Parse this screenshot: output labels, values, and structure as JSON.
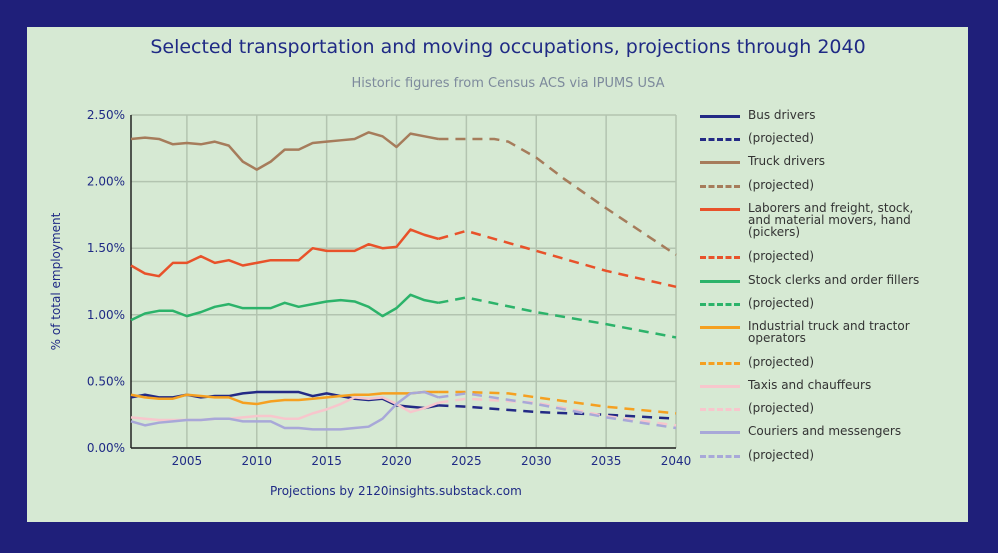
{
  "chart_data": {
    "type": "line",
    "title": "Selected transportation and moving occupations, projections through 2040",
    "subtitle": "Historic figures from Census ACS via IPUMS USA",
    "footer": "Projections by 2120insights.substack.com",
    "xlabel": "",
    "ylabel": "% of total employment",
    "xlim": [
      2001,
      2040
    ],
    "ylim": [
      0,
      2.5
    ],
    "x_ticks": [
      2005,
      2010,
      2015,
      2020,
      2025,
      2030,
      2035,
      2040
    ],
    "y_ticks": [
      0,
      0.5,
      1.0,
      1.5,
      2.0,
      2.5
    ],
    "y_tick_labels": [
      "0.00%",
      "0.50%",
      "1.00%",
      "1.50%",
      "2.00%",
      "2.50%"
    ],
    "grid": true,
    "legend_position": "right",
    "projected_label": "(projected)",
    "historic_years": [
      2001,
      2002,
      2003,
      2004,
      2005,
      2006,
      2007,
      2008,
      2009,
      2010,
      2011,
      2012,
      2013,
      2014,
      2015,
      2016,
      2017,
      2018,
      2019,
      2020,
      2021,
      2022,
      2023
    ],
    "series": [
      {
        "name": "Bus drivers",
        "color": "#232a85",
        "values": [
          0.38,
          0.4,
          0.38,
          0.38,
          0.4,
          0.38,
          0.39,
          0.39,
          0.41,
          0.42,
          0.42,
          0.42,
          0.42,
          0.39,
          0.41,
          0.39,
          0.37,
          0.36,
          0.37,
          0.32,
          0.31,
          0.3,
          0.32
        ],
        "projected": {
          "x": [
            2023,
            2025,
            2030,
            2035,
            2040
          ],
          "y": [
            0.32,
            0.31,
            0.27,
            0.25,
            0.22
          ]
        }
      },
      {
        "name": "Truck drivers",
        "color": "#a67c5b",
        "values": [
          2.32,
          2.33,
          2.32,
          2.28,
          2.29,
          2.28,
          2.3,
          2.27,
          2.15,
          2.09,
          2.15,
          2.24,
          2.24,
          2.29,
          2.3,
          2.31,
          2.32,
          2.37,
          2.34,
          2.26,
          2.36,
          2.34,
          2.32
        ],
        "projected": {
          "x": [
            2023,
            2025,
            2027,
            2028,
            2030,
            2032,
            2035,
            2040
          ],
          "y": [
            2.32,
            2.32,
            2.32,
            2.3,
            2.18,
            2.02,
            1.8,
            1.45
          ]
        }
      },
      {
        "name": "Laborers and freight, stock, and material movers, hand (pickers)",
        "color": "#e8522a",
        "values": [
          1.37,
          1.31,
          1.29,
          1.39,
          1.39,
          1.44,
          1.39,
          1.41,
          1.37,
          1.39,
          1.41,
          1.41,
          1.41,
          1.5,
          1.48,
          1.48,
          1.48,
          1.53,
          1.5,
          1.51,
          1.64,
          1.6,
          1.57
        ],
        "projected": {
          "x": [
            2023,
            2025,
            2030,
            2035,
            2040
          ],
          "y": [
            1.57,
            1.63,
            1.48,
            1.33,
            1.21
          ]
        }
      },
      {
        "name": "Stock clerks and order fillers",
        "color": "#2cb36a",
        "values": [
          0.96,
          1.01,
          1.03,
          1.03,
          0.99,
          1.02,
          1.06,
          1.08,
          1.05,
          1.05,
          1.05,
          1.09,
          1.06,
          1.08,
          1.1,
          1.11,
          1.1,
          1.06,
          0.99,
          1.05,
          1.15,
          1.11,
          1.09
        ],
        "projected": {
          "x": [
            2023,
            2025,
            2030,
            2035,
            2040
          ],
          "y": [
            1.09,
            1.13,
            1.02,
            0.93,
            0.83
          ]
        }
      },
      {
        "name": "Industrial truck and tractor operators",
        "color": "#f5a020",
        "values": [
          0.4,
          0.38,
          0.37,
          0.37,
          0.4,
          0.39,
          0.38,
          0.38,
          0.34,
          0.33,
          0.35,
          0.36,
          0.36,
          0.37,
          0.38,
          0.39,
          0.4,
          0.4,
          0.41,
          0.41,
          0.41,
          0.42,
          0.42
        ],
        "projected": {
          "x": [
            2023,
            2025,
            2028,
            2030,
            2035,
            2040
          ],
          "y": [
            0.42,
            0.42,
            0.41,
            0.38,
            0.31,
            0.26
          ]
        }
      },
      {
        "name": "Taxis and chauffeurs",
        "color": "#f7c6cc",
        "values": [
          0.23,
          0.22,
          0.21,
          0.21,
          0.21,
          0.21,
          0.22,
          0.22,
          0.23,
          0.24,
          0.24,
          0.22,
          0.22,
          0.26,
          0.29,
          0.33,
          0.38,
          0.37,
          0.38,
          0.33,
          0.27,
          0.3,
          0.34
        ],
        "projected": {
          "x": [
            2023,
            2025,
            2030,
            2035,
            2040
          ],
          "y": [
            0.34,
            0.37,
            0.34,
            0.24,
            0.17
          ]
        }
      },
      {
        "name": "Couriers and messengers",
        "color": "#a8a8d8",
        "values": [
          0.2,
          0.17,
          0.19,
          0.2,
          0.21,
          0.21,
          0.22,
          0.22,
          0.2,
          0.2,
          0.2,
          0.15,
          0.15,
          0.14,
          0.14,
          0.14,
          0.15,
          0.16,
          0.22,
          0.33,
          0.41,
          0.42,
          0.38
        ],
        "projected": {
          "x": [
            2023,
            2025,
            2030,
            2035,
            2040
          ],
          "y": [
            0.38,
            0.41,
            0.33,
            0.23,
            0.15
          ]
        }
      }
    ]
  }
}
